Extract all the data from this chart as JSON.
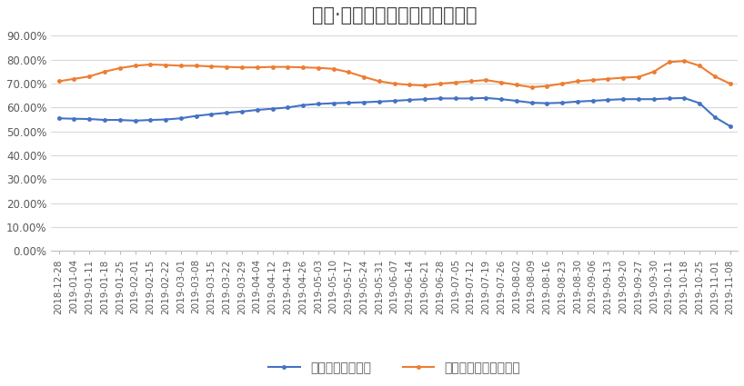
{
  "title": "融智·股票私募基金最新仓位指数",
  "dates": [
    "2018-12-28",
    "2019-01-04",
    "2019-01-11",
    "2019-01-18",
    "2019-01-25",
    "2019-02-01",
    "2019-02-15",
    "2019-02-22",
    "2019-03-01",
    "2019-03-08",
    "2019-03-15",
    "2019-03-22",
    "2019-03-29",
    "2019-04-04",
    "2019-04-12",
    "2019-04-19",
    "2019-04-26",
    "2019-05-03",
    "2019-05-10",
    "2019-05-17",
    "2019-05-24",
    "2019-05-31",
    "2019-06-07",
    "2019-06-14",
    "2019-06-21",
    "2019-06-28",
    "2019-07-05",
    "2019-07-12",
    "2019-07-19",
    "2019-07-26",
    "2019-08-02",
    "2019-08-09",
    "2019-08-16",
    "2019-08-23",
    "2019-08-30",
    "2019-09-06",
    "2019-09-13",
    "2019-09-20",
    "2019-09-27",
    "2019-09-30",
    "2019-10-11",
    "2019-10-18",
    "2019-10-25",
    "2019-11-01",
    "2019-11-08"
  ],
  "series1_values": [
    0.555,
    0.553,
    0.552,
    0.548,
    0.548,
    0.545,
    0.548,
    0.55,
    0.555,
    0.565,
    0.572,
    0.578,
    0.583,
    0.59,
    0.595,
    0.6,
    0.61,
    0.615,
    0.618,
    0.62,
    0.622,
    0.625,
    0.628,
    0.632,
    0.635,
    0.638,
    0.638,
    0.638,
    0.64,
    0.635,
    0.628,
    0.62,
    0.618,
    0.62,
    0.625,
    0.628,
    0.632,
    0.635,
    0.635,
    0.635,
    0.638,
    0.64,
    0.618,
    0.56,
    0.522
  ],
  "series2_values": [
    0.71,
    0.72,
    0.73,
    0.75,
    0.765,
    0.775,
    0.78,
    0.778,
    0.775,
    0.775,
    0.772,
    0.77,
    0.768,
    0.768,
    0.77,
    0.77,
    0.768,
    0.766,
    0.762,
    0.748,
    0.728,
    0.71,
    0.7,
    0.695,
    0.692,
    0.7,
    0.705,
    0.71,
    0.715,
    0.705,
    0.695,
    0.685,
    0.69,
    0.7,
    0.71,
    0.715,
    0.72,
    0.725,
    0.728,
    0.75,
    0.79,
    0.795,
    0.775,
    0.73,
    0.7
  ],
  "series1_label": "股票私募仓位指数",
  "series2_label": "百亿股票私募仓位指数",
  "series1_color": "#4472C4",
  "series2_color": "#ED7D31",
  "ylim_min": 0.0,
  "ylim_max": 0.9,
  "yticks": [
    0.0,
    0.1,
    0.2,
    0.3,
    0.4,
    0.5,
    0.6,
    0.7,
    0.8,
    0.9
  ],
  "grid_color": "#D9D9D9",
  "background_color": "#FFFFFF",
  "title_fontsize": 15,
  "tick_fontsize": 7.5,
  "legend_fontsize": 10
}
